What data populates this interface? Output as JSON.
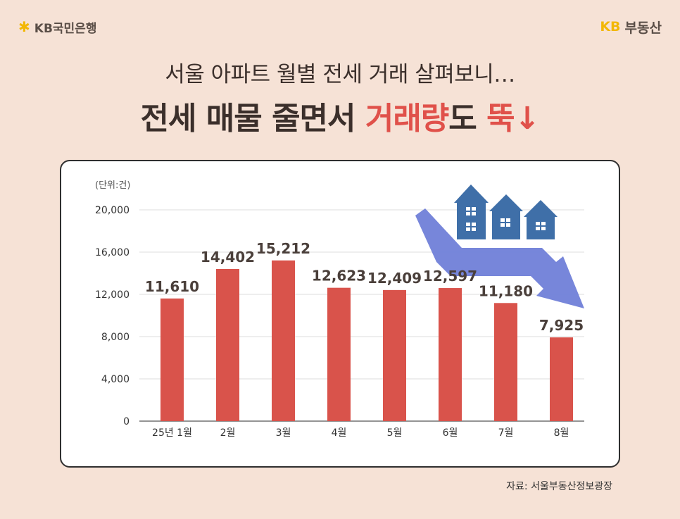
{
  "header": {
    "bank_logo_text": "KB국민은행",
    "brand_kb": "KB",
    "brand_name": "부동산"
  },
  "headline": {
    "subtitle": "서울 아파트 월별 전세 거래 살펴보니…",
    "title_part1": "전세 매물 줄면서 ",
    "title_highlight1": "거래량",
    "title_part2": "도 ",
    "title_highlight2": "뚝↓"
  },
  "chart_unit": "(단위:건)",
  "source": "자료: 서울부동산정보광장",
  "colors": {
    "bar": "#d9534b",
    "highlight": "#e0514a",
    "house": "#3f6fa8",
    "arrow": "#6f7fd6"
  },
  "chart_data": {
    "type": "bar",
    "categories": [
      "25년 1월",
      "2월",
      "3월",
      "4월",
      "5월",
      "6월",
      "7월",
      "8월"
    ],
    "values": [
      11610,
      14402,
      15212,
      12623,
      12409,
      12597,
      11180,
      7925
    ],
    "value_labels": [
      "11,610",
      "14,402",
      "15,212",
      "12,623",
      "12,409",
      "12,597",
      "11,180",
      "7,925"
    ],
    "yticks": [
      "0",
      "4,000",
      "8,000",
      "12,000",
      "16,000",
      "20,000"
    ],
    "ytick_values": [
      0,
      4000,
      8000,
      12000,
      16000,
      20000
    ],
    "ylim": [
      0,
      20000
    ],
    "grid": true
  }
}
